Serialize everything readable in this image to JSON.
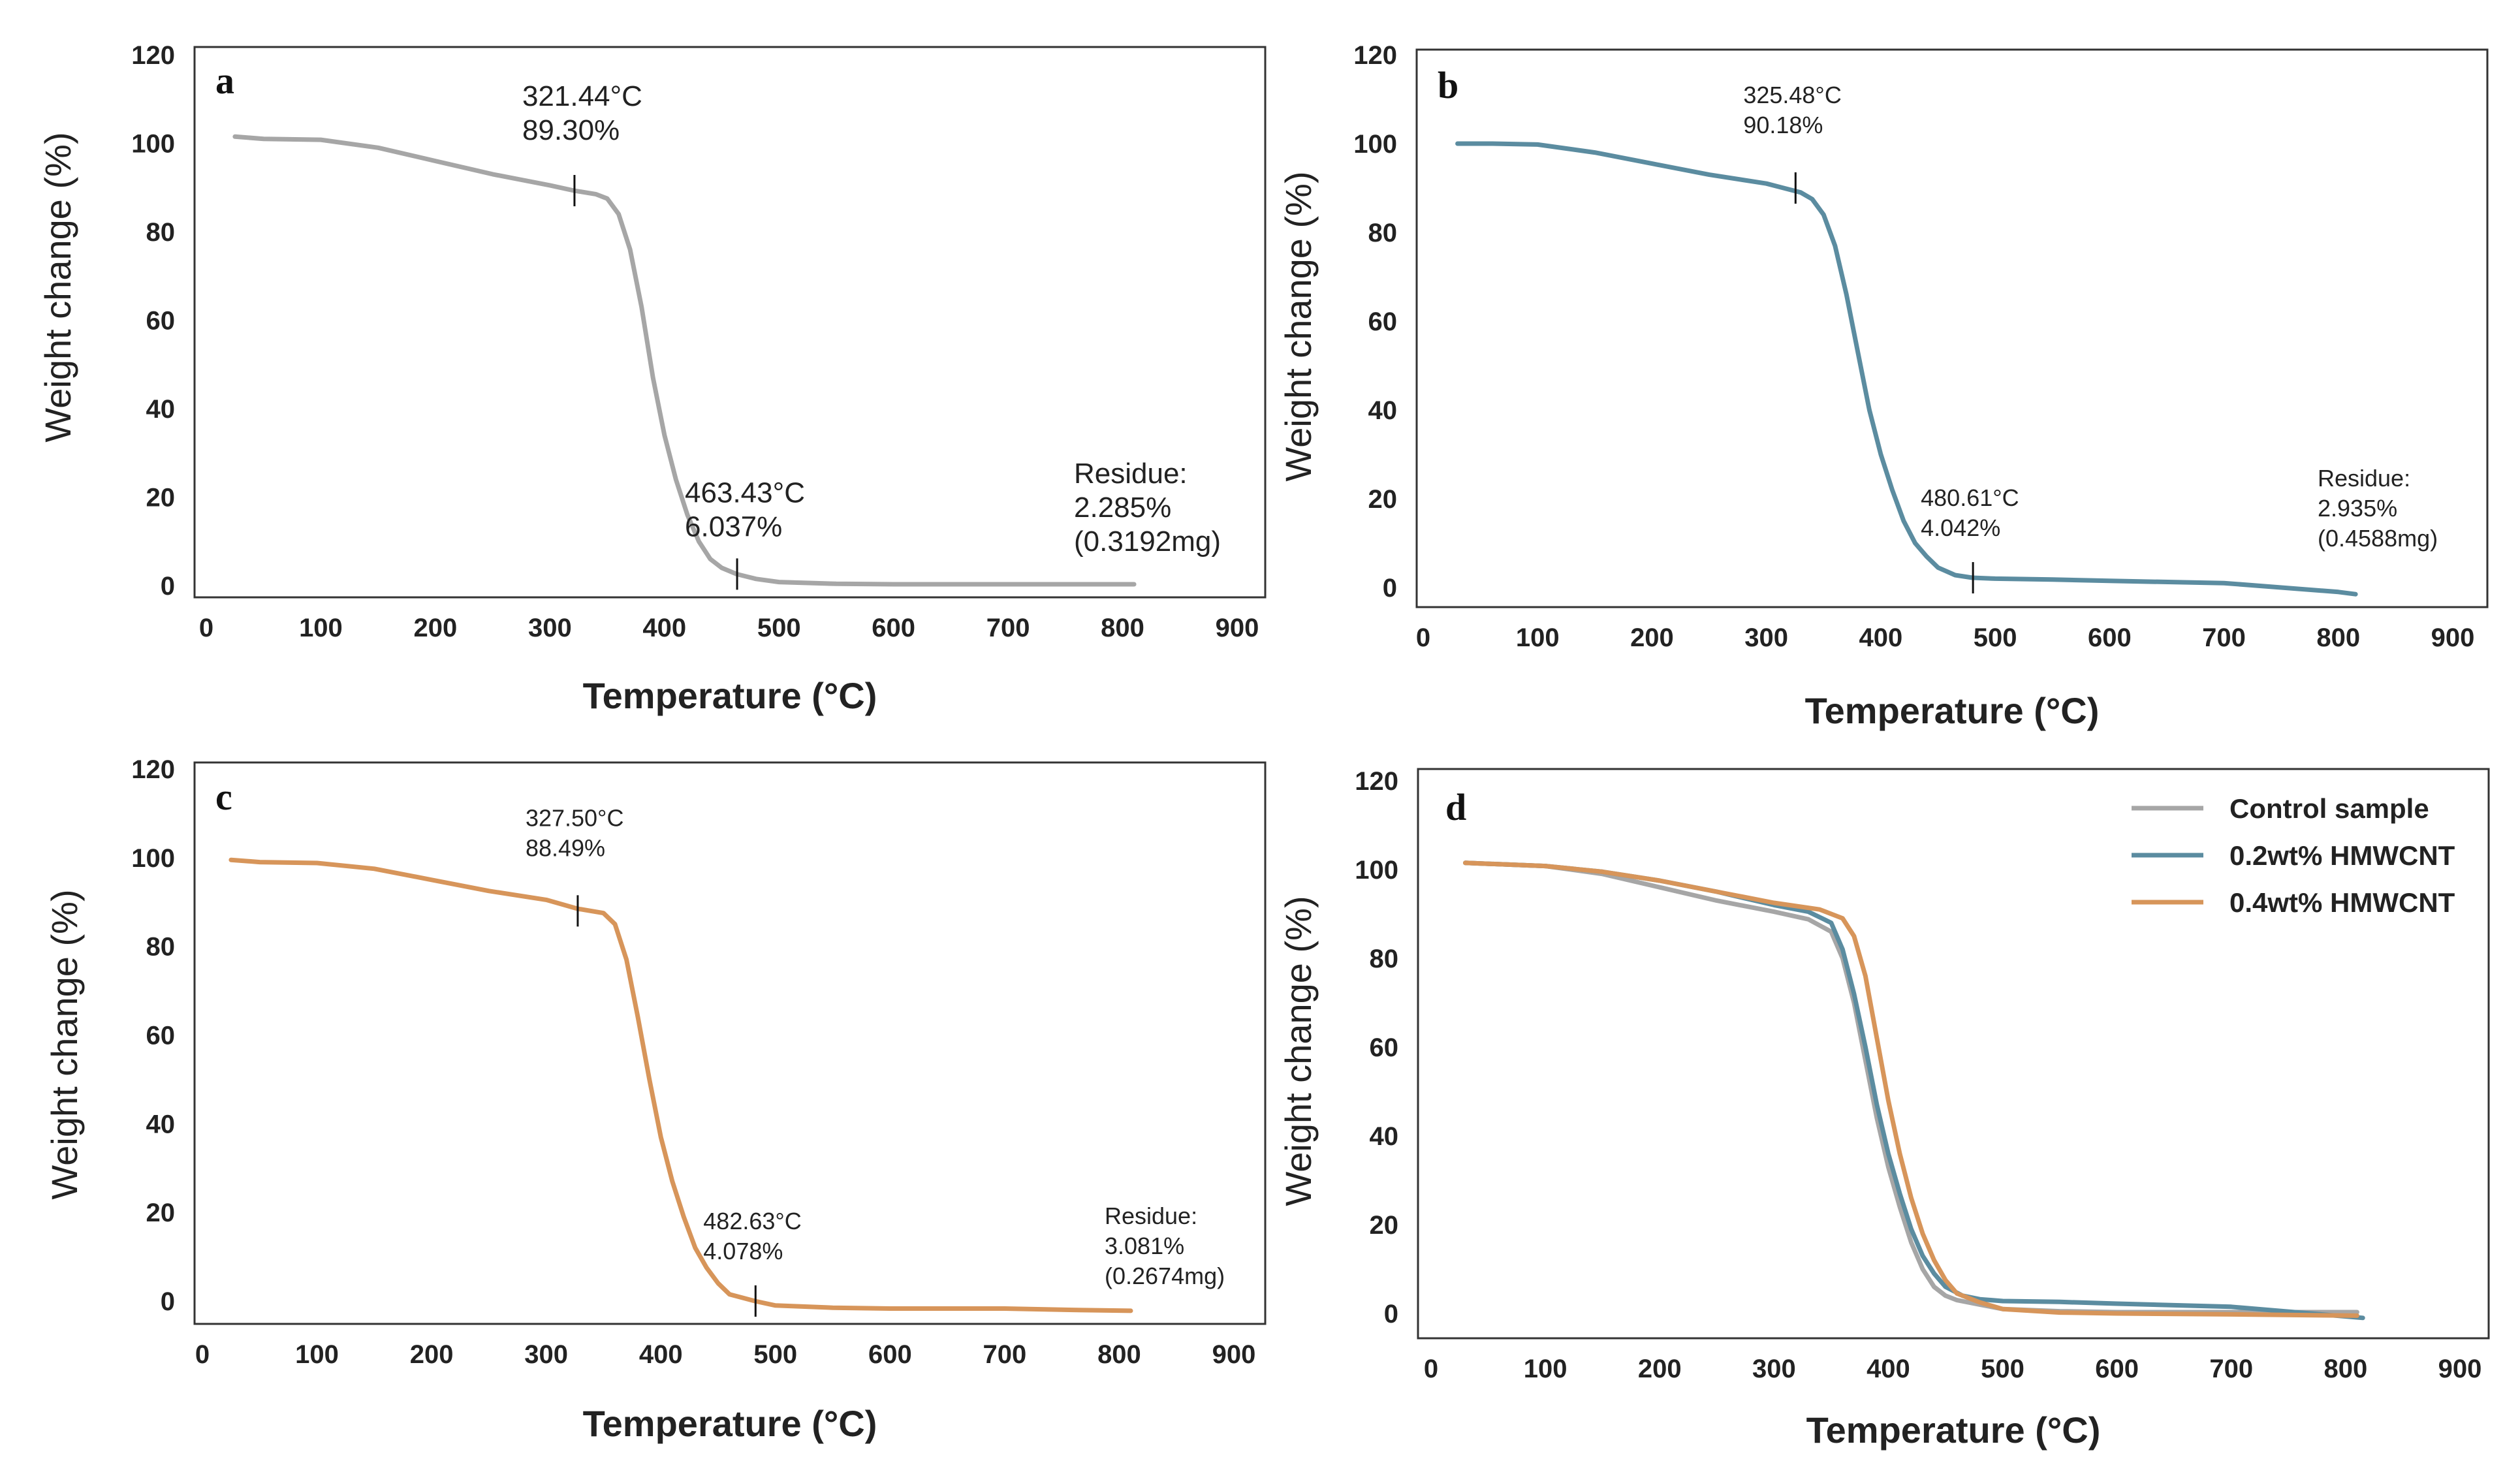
{
  "chart_data": [
    {
      "type": "line",
      "panel": "a",
      "xlabel": "Temperature (°C)",
      "ylabel": "Weight change (%)",
      "xlim": [
        0,
        900
      ],
      "ylim": [
        0,
        120
      ],
      "xticks": [
        "0",
        "100",
        "200",
        "300",
        "400",
        "500",
        "600",
        "700",
        "800",
        "900"
      ],
      "yticks": [
        "0",
        "20",
        "40",
        "60",
        "80",
        "100",
        "120"
      ],
      "color": "#a6a6a6",
      "series": [
        {
          "name": "Control sample",
          "x": [
            25,
            50,
            100,
            150,
            200,
            250,
            300,
            321,
            340,
            350,
            360,
            370,
            380,
            390,
            400,
            410,
            420,
            430,
            440,
            450,
            463,
            480,
            500,
            550,
            600,
            700,
            810
          ],
          "y": [
            101.5,
            101,
            100.8,
            99,
            96,
            93,
            90.5,
            89.3,
            88.5,
            87.5,
            84,
            76,
            63,
            47,
            34,
            24,
            16,
            10,
            6,
            4,
            2.6,
            1.5,
            0.8,
            0.4,
            0.3,
            0.3,
            0.3
          ]
        }
      ],
      "annotations": [
        {
          "x": 321.44,
          "y": 89.3,
          "lines": [
            "321.44°C",
            "89.30%"
          ]
        },
        {
          "x": 463.43,
          "y": 2.6,
          "lines": [
            "463.43°C",
            "6.037%"
          ]
        }
      ],
      "residue": [
        "Residue:",
        "2.285%",
        "(0.3192mg)"
      ]
    },
    {
      "type": "line",
      "panel": "b",
      "xlabel": "Temperature (°C)",
      "ylabel": "Weight change (%)",
      "xlim": [
        0,
        900
      ],
      "ylim": [
        0,
        120
      ],
      "xticks": [
        "0",
        "100",
        "200",
        "300",
        "400",
        "500",
        "600",
        "700",
        "800",
        "900"
      ],
      "yticks": [
        "0",
        "20",
        "40",
        "60",
        "80",
        "100",
        "120"
      ],
      "color": "#5b8ca0",
      "series": [
        {
          "name": "0.2wt% HMWCNT",
          "x": [
            30,
            60,
            100,
            150,
            200,
            250,
            300,
            315,
            330,
            340,
            350,
            360,
            370,
            380,
            390,
            400,
            410,
            420,
            430,
            440,
            450,
            465,
            480,
            500,
            550,
            600,
            700,
            750,
            800,
            815
          ],
          "y": [
            100,
            100,
            99.8,
            98,
            95.5,
            93,
            91,
            90,
            89,
            87.5,
            84,
            77,
            66,
            53,
            40,
            30,
            22,
            15,
            10,
            7,
            4.5,
            2.8,
            2.2,
            2,
            1.8,
            1.5,
            1,
            0,
            -1,
            -1.5
          ]
        }
      ],
      "annotations": [
        {
          "x": 325.48,
          "y": 90.0,
          "lines": [
            "325.48°C",
            "90.18%"
          ]
        },
        {
          "x": 480.61,
          "y": 2.2,
          "lines": [
            "480.61°C",
            "4.042%"
          ]
        }
      ],
      "residue": [
        "Residue:",
        "2.935%",
        "(0.4588mg)"
      ]
    },
    {
      "type": "line",
      "panel": "c",
      "xlabel": "Temperature (°C)",
      "ylabel": "Weight change (%)",
      "xlim": [
        0,
        900
      ],
      "ylim": [
        0,
        120
      ],
      "xticks": [
        "0",
        "100",
        "200",
        "300",
        "400",
        "500",
        "600",
        "700",
        "800",
        "900"
      ],
      "yticks": [
        "0",
        "20",
        "40",
        "60",
        "80",
        "100",
        "120"
      ],
      "color": "#d7955a",
      "series": [
        {
          "name": "0.4wt% HMWCNT",
          "x": [
            25,
            50,
            100,
            150,
            200,
            250,
            300,
            327,
            350,
            360,
            370,
            380,
            390,
            400,
            410,
            420,
            430,
            440,
            450,
            460,
            482,
            500,
            550,
            600,
            700,
            760,
            810
          ],
          "y": [
            99.5,
            99,
            98.8,
            97.5,
            95,
            92.5,
            90.5,
            88.5,
            87.5,
            85,
            77,
            64,
            50,
            37,
            27,
            19,
            12,
            7.5,
            4,
            1.5,
            0,
            -1,
            -1.5,
            -1.7,
            -1.7,
            -2,
            -2.2
          ]
        }
      ],
      "annotations": [
        {
          "x": 327.5,
          "y": 88.0,
          "lines": [
            "327.50°C",
            "88.49%"
          ]
        },
        {
          "x": 482.63,
          "y": 0.0,
          "lines": [
            "482.63°C",
            "4.078%"
          ]
        }
      ],
      "residue": [
        "Residue:",
        "3.081%",
        "(0.2674mg)"
      ]
    },
    {
      "type": "line",
      "panel": "d",
      "xlabel": "Temperature (°C)",
      "ylabel": "Weight change (%)",
      "xlim": [
        0,
        900
      ],
      "ylim": [
        0,
        120
      ],
      "xticks": [
        "0",
        "100",
        "200",
        "300",
        "400",
        "500",
        "600",
        "700",
        "800",
        "900"
      ],
      "yticks": [
        "0",
        "20",
        "40",
        "60",
        "80",
        "100",
        "120"
      ],
      "legend": "top-right",
      "series": [
        {
          "name": "Control sample",
          "color": "#a6a6a6",
          "x": [
            30,
            100,
            150,
            200,
            250,
            300,
            330,
            350,
            360,
            370,
            380,
            390,
            400,
            410,
            420,
            430,
            440,
            450,
            460,
            480,
            500,
            550,
            600,
            700,
            810
          ],
          "y": [
            101.5,
            100.8,
            99,
            96,
            93,
            90.5,
            88.8,
            86,
            80,
            70,
            57,
            44,
            33,
            24,
            16,
            10,
            6,
            4,
            3,
            2,
            1,
            0.5,
            0.3,
            0.3,
            0.3
          ]
        },
        {
          "name": "0.2wt% HMWCNT",
          "color": "#5b8ca0",
          "x": [
            30,
            100,
            150,
            200,
            250,
            300,
            330,
            350,
            360,
            370,
            380,
            390,
            400,
            410,
            420,
            430,
            440,
            450,
            465,
            480,
            500,
            550,
            600,
            700,
            815
          ],
          "y": [
            101.5,
            100.8,
            99.5,
            97.5,
            95,
            92,
            90.5,
            88,
            82,
            72,
            60,
            47,
            36,
            27,
            19,
            13,
            9,
            6,
            4,
            3.2,
            2.8,
            2.6,
            2.2,
            1.5,
            -1
          ]
        },
        {
          "name": "0.4wt% HMWCNT",
          "color": "#d7955a",
          "x": [
            30,
            100,
            150,
            200,
            250,
            300,
            340,
            360,
            370,
            380,
            390,
            400,
            410,
            420,
            430,
            440,
            450,
            460,
            480,
            500,
            550,
            600,
            700,
            810
          ],
          "y": [
            101.5,
            100.8,
            99.5,
            97.5,
            95,
            92.5,
            91,
            89,
            85,
            76,
            62,
            48,
            36,
            26,
            18,
            12,
            7.5,
            4.5,
            2.5,
            1,
            0.2,
            0,
            -0.2,
            -0.5
          ]
        }
      ]
    }
  ]
}
